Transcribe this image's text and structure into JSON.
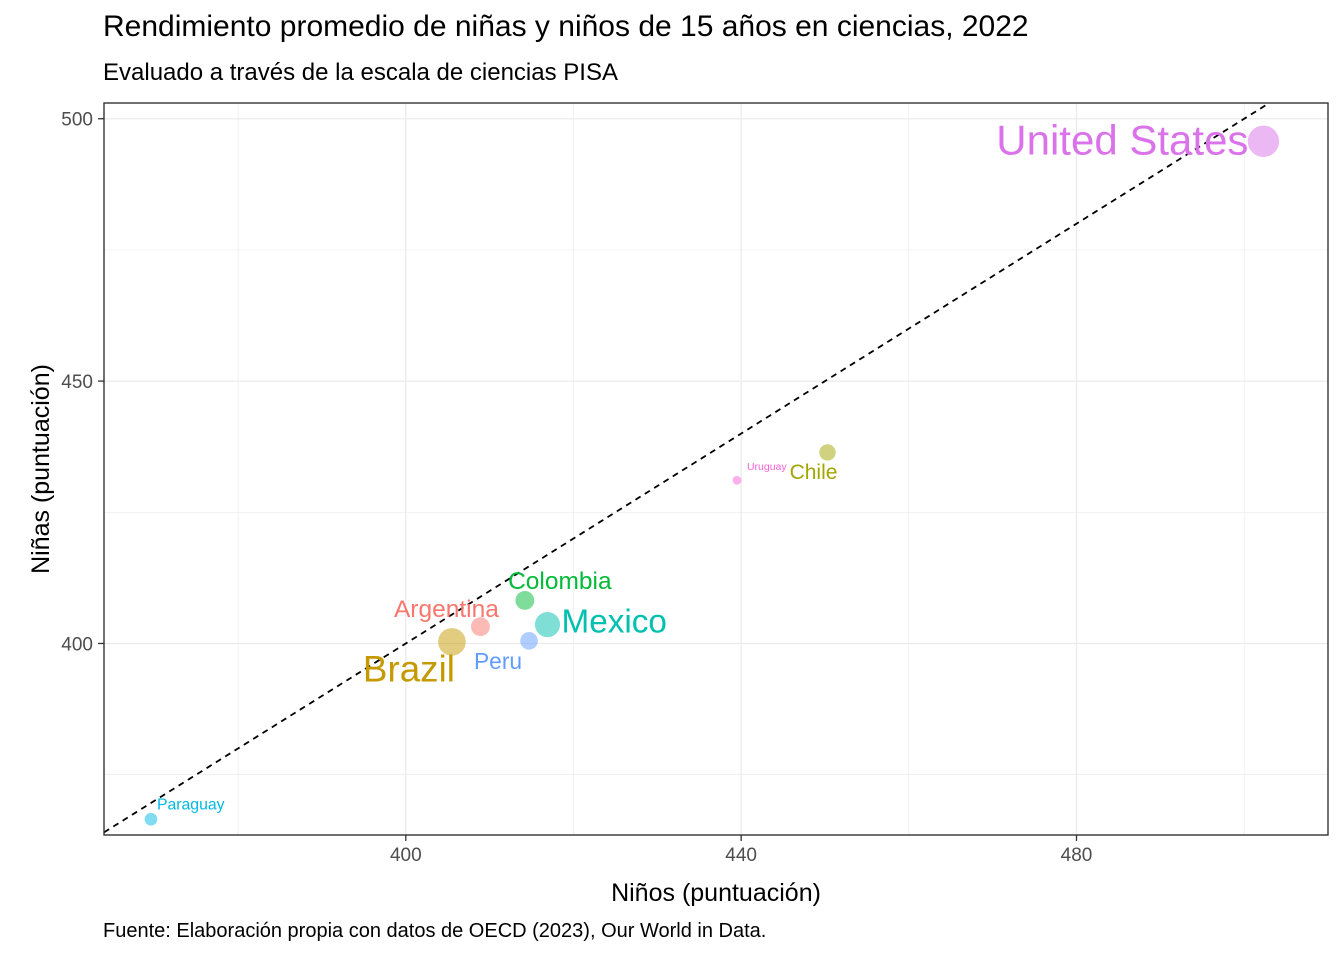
{
  "title": "Rendimiento promedio de niñas y niños de 15 años en ciencias, 2022",
  "subtitle": "Evaluado a través de la escala de ciencias PISA",
  "caption": "Fuente: Elaboración propia con datos de OECD (2023), Our World in Data.",
  "chart_data": {
    "type": "scatter",
    "title": "Rendimiento promedio de niñas y niños de 15 años en ciencias, 2022",
    "subtitle": "Evaluado a través de la escala de ciencias PISA",
    "xlabel": "Niños (puntuación)",
    "ylabel": "Niñas (puntuación)",
    "xlim": [
      364,
      510
    ],
    "ylim": [
      363.5,
      503
    ],
    "xticks": [
      400,
      440,
      480
    ],
    "yticks": [
      400,
      450,
      500
    ],
    "grid": true,
    "legend": "none",
    "reference_line": {
      "type": "identity",
      "style": "dashed",
      "color": "#000000"
    },
    "points": [
      {
        "name": "United States",
        "x": 502.3,
        "y": 495.7,
        "size": 10,
        "color": "#DA72EA"
      },
      {
        "name": "Chile",
        "x": 450.3,
        "y": 436.4,
        "size": 4,
        "color": "#A3A500"
      },
      {
        "name": "Uruguay",
        "x": 439.5,
        "y": 431.1,
        "size": 1,
        "color": "#FB61D7"
      },
      {
        "name": "Colombia",
        "x": 414.2,
        "y": 408.2,
        "size": 5,
        "color": "#00BA38"
      },
      {
        "name": "Mexico",
        "x": 416.9,
        "y": 403.6,
        "size": 7.5,
        "color": "#00C0AF"
      },
      {
        "name": "Argentina",
        "x": 408.9,
        "y": 403.2,
        "size": 5,
        "color": "#F8766D"
      },
      {
        "name": "Peru",
        "x": 414.7,
        "y": 400.5,
        "size": 4.5,
        "color": "#619CFF"
      },
      {
        "name": "Brazil",
        "x": 405.5,
        "y": 400.3,
        "size": 8.5,
        "color": "#C49A00"
      },
      {
        "name": "Paraguay",
        "x": 369.6,
        "y": 366.5,
        "size": 2.5,
        "color": "#00B9E3"
      }
    ]
  }
}
